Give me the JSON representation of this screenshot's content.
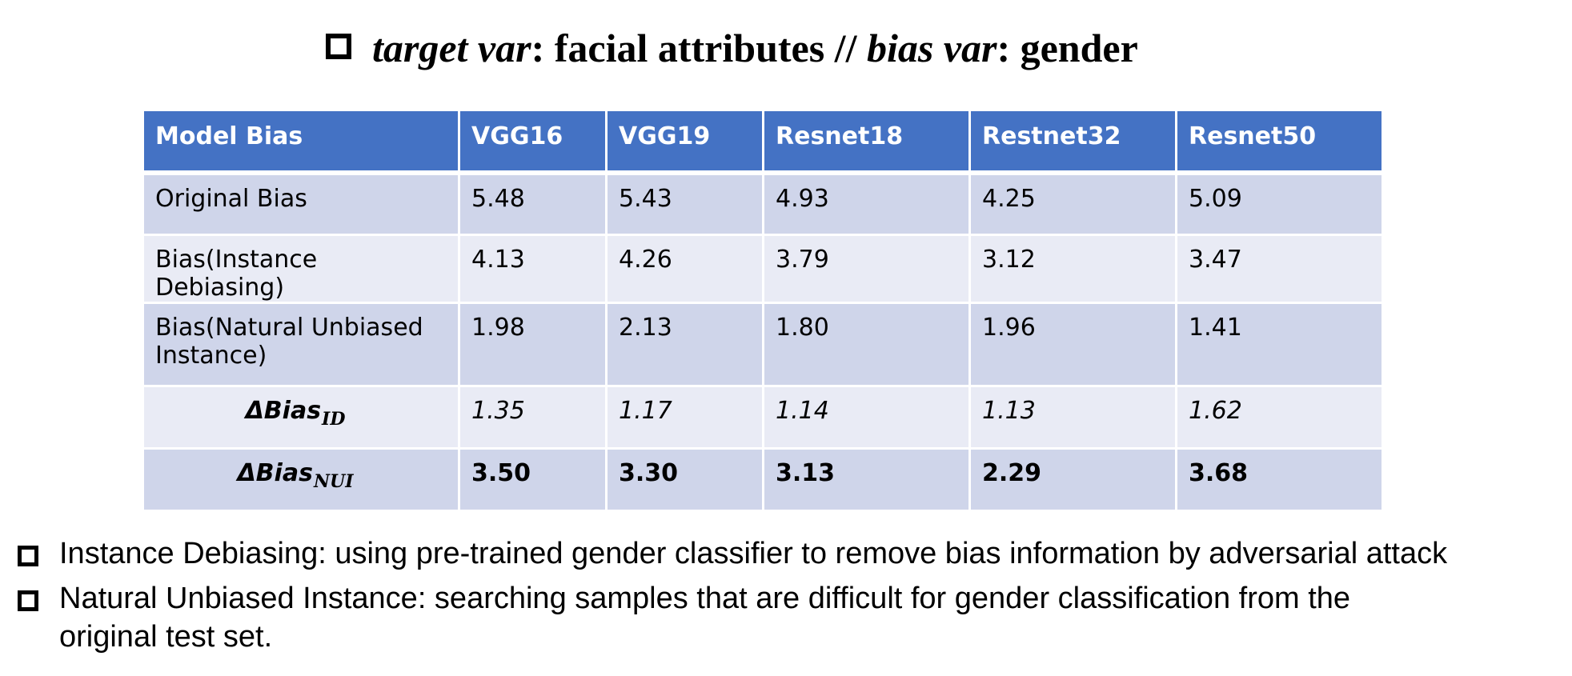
{
  "title": {
    "target_label": "target var",
    "target_value": ": facial attributes // ",
    "bias_label": "bias var",
    "bias_value": ": gender"
  },
  "table": {
    "headers": [
      "Model Bias",
      "VGG16",
      "VGG19",
      "Resnet18",
      "Restnet32",
      "Resnet50"
    ],
    "rows": [
      {
        "label": "Original Bias",
        "values": [
          "5.48",
          "5.43",
          "4.93",
          "4.25",
          "5.09"
        ]
      },
      {
        "label": "Bias(Instance Debiasing)",
        "values": [
          "4.13",
          "4.26",
          "3.79",
          "3.12",
          "3.47"
        ]
      },
      {
        "label_line1": "Bias(Natural Unbiased",
        "label_line2": "Instance)",
        "values": [
          "1.98",
          "2.13",
          "1.80",
          "1.96",
          "1.41"
        ]
      },
      {
        "label_base": "ΔBias",
        "label_sub": "ID",
        "values": [
          "1.35",
          "1.17",
          "1.14",
          "1.13",
          "1.62"
        ]
      },
      {
        "label_base": "ΔBias",
        "label_sub": "NUI",
        "values": [
          "3.50",
          "3.30",
          "3.13",
          "2.29",
          "3.68"
        ]
      }
    ]
  },
  "notes": [
    {
      "text": "Instance Debiasing: using pre-trained gender classifier to remove bias information by adversarial attack"
    },
    {
      "line1": "Natural Unbiased Instance: searching samples that are difficult for gender classification from the",
      "line2": "original test set."
    }
  ]
}
